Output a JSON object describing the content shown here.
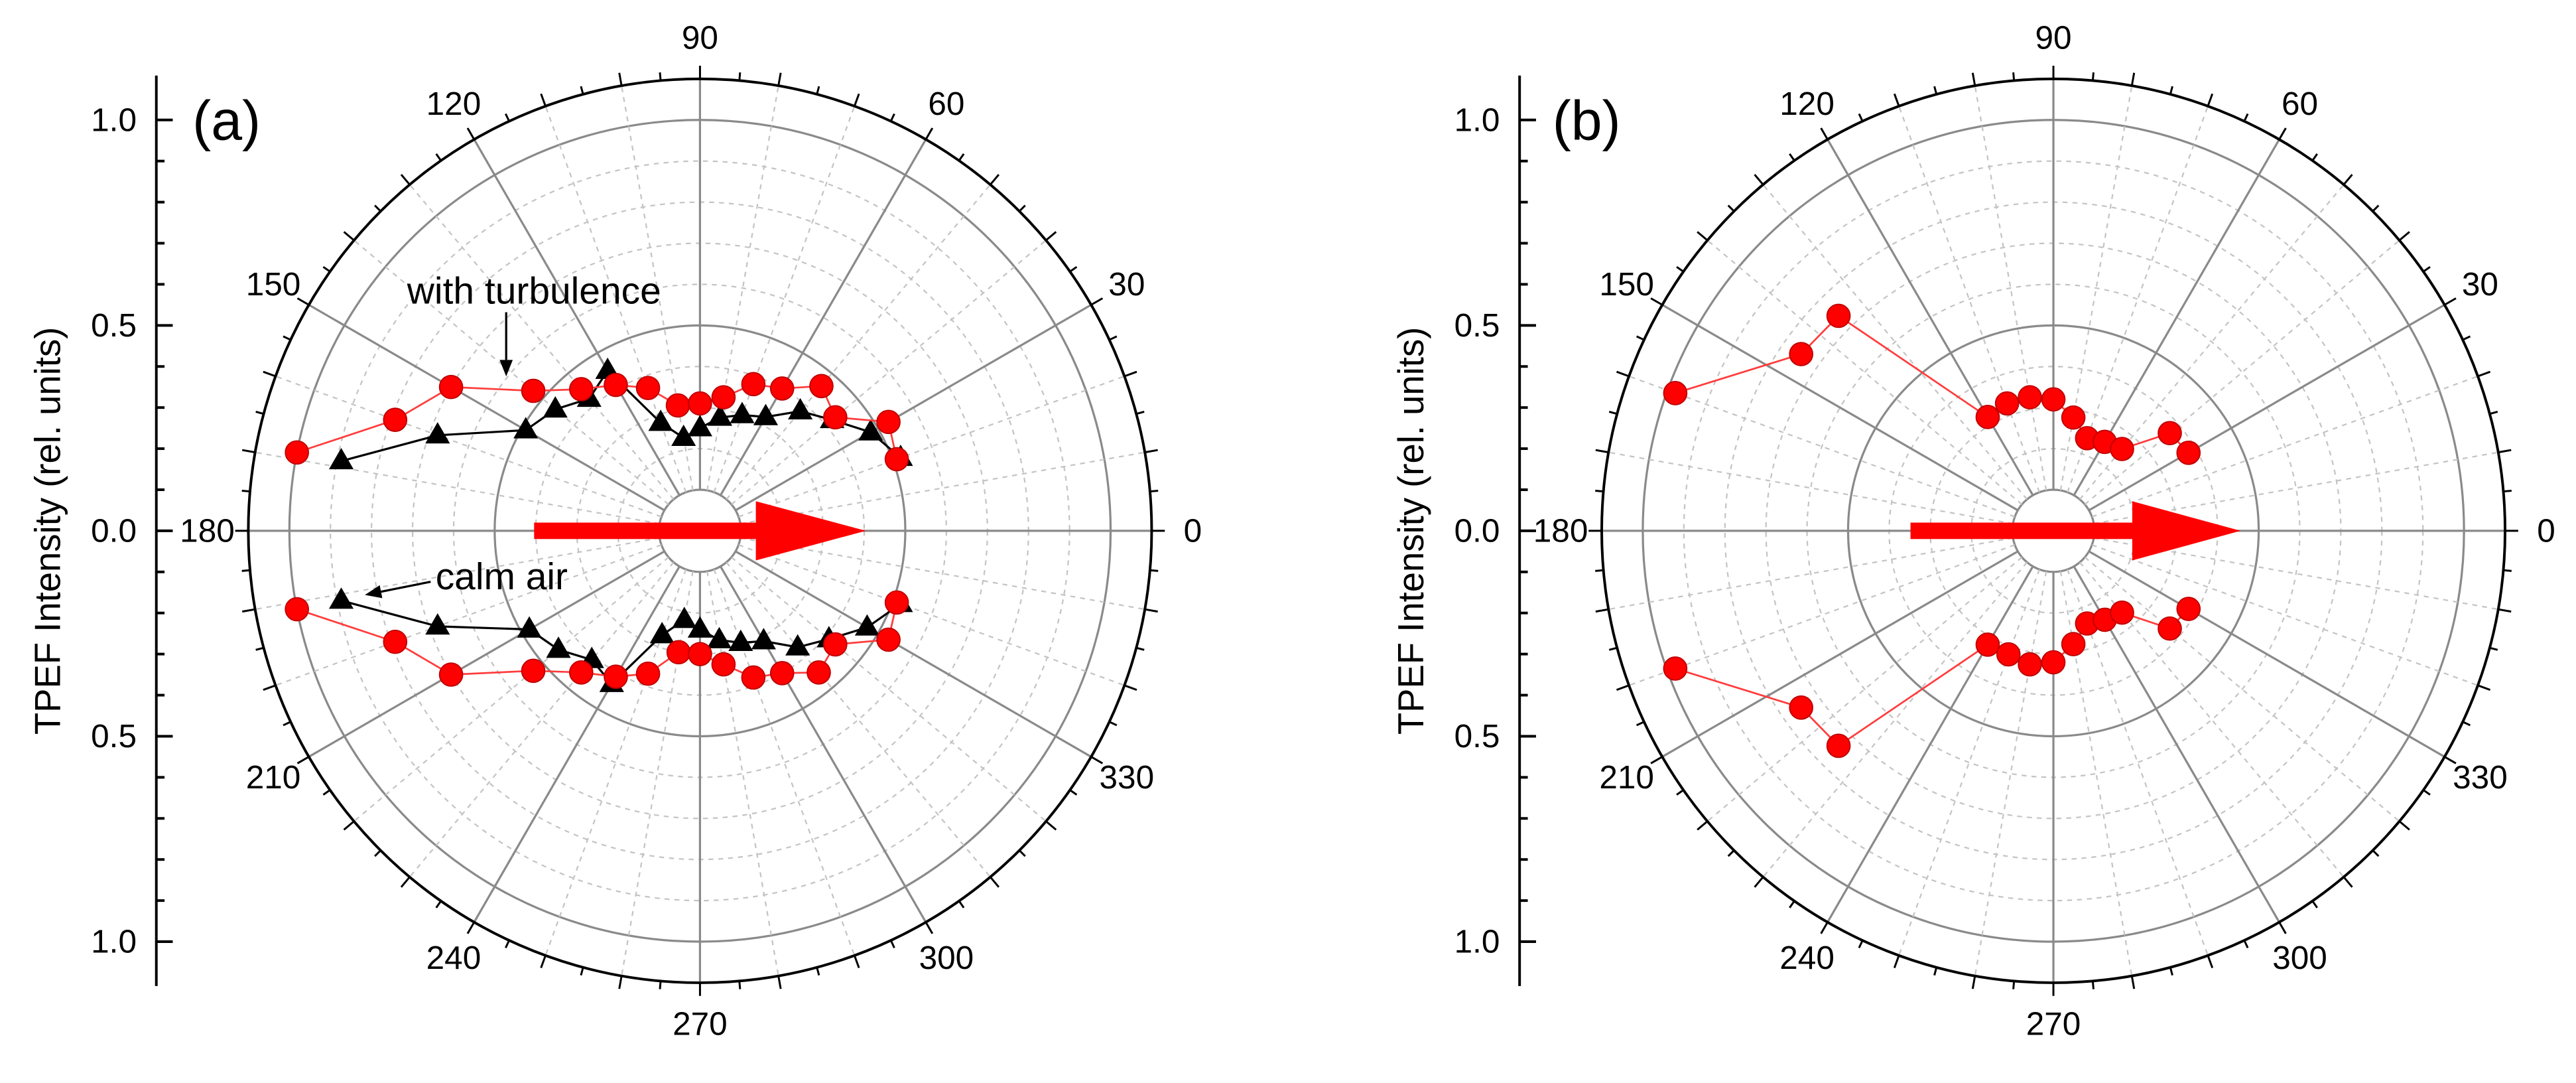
{
  "chart_data": [
    {
      "type": "line",
      "polar": true,
      "title": "(a)",
      "ylabel": "TPEF Intensity (rel. units)",
      "rlim": [
        0,
        1.1
      ],
      "r_ticks": [
        0.0,
        0.5,
        1.0
      ],
      "r_tick_labels": [
        "0.0",
        "0.5",
        "1.0"
      ],
      "theta_ticks": [
        0,
        30,
        60,
        90,
        120,
        150,
        180,
        210,
        240,
        270,
        300,
        330
      ],
      "theta_tick_labels": [
        "0",
        "30",
        "60",
        "90",
        "120",
        "150",
        "180",
        "210",
        "240",
        "270",
        "300",
        "330"
      ],
      "grid": true,
      "arrow_color": "#ff0000",
      "series": [
        {
          "name": "calm air",
          "marker": "triangle",
          "color": "#000000",
          "line_color": "#000000",
          "segments": [
            {
              "theta": [
                169,
                160,
                150,
                140,
                130,
                120,
                110,
                100,
                90,
                80,
                70,
                60,
                50,
                40,
                30,
                20
              ],
              "r": [
                0.89,
                0.68,
                0.49,
                0.46,
                0.42,
                0.45,
                0.28,
                0.23,
                0.25,
                0.28,
                0.3,
                0.32,
                0.38,
                0.42,
                0.48,
                0.52
              ]
            },
            {
              "theta": [
                191,
                200,
                210,
                220,
                230,
                240,
                250,
                260,
                270,
                280,
                290,
                300,
                310,
                320,
                330,
                340
              ],
              "r": [
                0.89,
                0.68,
                0.48,
                0.45,
                0.41,
                0.43,
                0.27,
                0.22,
                0.24,
                0.27,
                0.29,
                0.31,
                0.37,
                0.41,
                0.47,
                0.52
              ]
            }
          ]
        },
        {
          "name": "with turbulence",
          "marker": "circle",
          "color": "#ff0000",
          "line_color": "#ff3c3c",
          "segments": [
            {
              "theta": [
                169,
                160,
                150,
                140,
                130,
                120,
                110,
                100,
                90,
                80,
                70,
                60,
                50,
                40,
                30,
                20
              ],
              "r": [
                1.0,
                0.79,
                0.7,
                0.53,
                0.45,
                0.41,
                0.37,
                0.31,
                0.31,
                0.33,
                0.38,
                0.4,
                0.46,
                0.43,
                0.53,
                0.51
              ]
            },
            {
              "theta": [
                191,
                200,
                210,
                220,
                230,
                240,
                250,
                260,
                270,
                280,
                290,
                300,
                310,
                320,
                330,
                340
              ],
              "r": [
                1.0,
                0.79,
                0.7,
                0.53,
                0.45,
                0.41,
                0.37,
                0.3,
                0.3,
                0.33,
                0.38,
                0.4,
                0.45,
                0.43,
                0.53,
                0.51
              ]
            }
          ]
        }
      ]
    },
    {
      "type": "line",
      "polar": true,
      "title": "(b)",
      "ylabel": "TPEF Intensity (rel. units)",
      "rlim": [
        0,
        1.1
      ],
      "r_ticks": [
        0.0,
        0.5,
        1.0
      ],
      "r_tick_labels": [
        "0.0",
        "0.5",
        "1.0"
      ],
      "theta_ticks": [
        0,
        30,
        60,
        90,
        120,
        150,
        180,
        210,
        240,
        270,
        300,
        330
      ],
      "theta_tick_labels": [
        "0",
        "30",
        "60",
        "90",
        "120",
        "150",
        "180",
        "210",
        "240",
        "270",
        "300",
        "330"
      ],
      "grid": true,
      "arrow_color": "#ff0000",
      "series": [
        {
          "marker": "circle",
          "color": "#ff0000",
          "line_color": "#ff3c3c",
          "segments": [
            {
              "theta": [
                160,
                145,
                135,
                120,
                110,
                100,
                90,
                80,
                70,
                60,
                50,
                40,
                30
              ],
              "r": [
                0.98,
                0.75,
                0.74,
                0.32,
                0.33,
                0.33,
                0.32,
                0.28,
                0.24,
                0.25,
                0.26,
                0.37,
                0.38
              ]
            },
            {
              "theta": [
                200,
                215,
                225,
                240,
                250,
                260,
                270,
                280,
                290,
                300,
                310,
                320,
                330
              ],
              "r": [
                0.98,
                0.75,
                0.74,
                0.32,
                0.32,
                0.33,
                0.32,
                0.28,
                0.24,
                0.25,
                0.26,
                0.37,
                0.38
              ]
            }
          ]
        }
      ]
    }
  ]
}
